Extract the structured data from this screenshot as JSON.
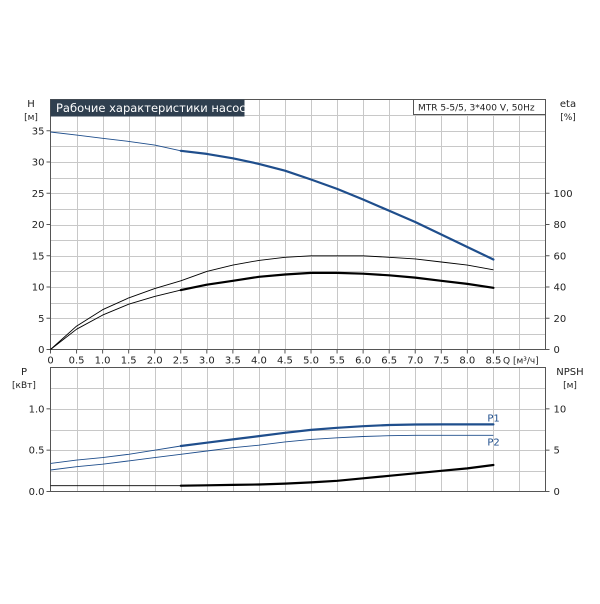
{
  "chart_data": [
    {
      "type": "line",
      "title": "Рабочие характеристики насоса",
      "model": "MTR 5-5/5, 3*400 V, 50Hz",
      "x_axis": {
        "label": "Q [м³/ч]",
        "range": [
          0,
          9.5
        ],
        "ticks": [
          "0",
          "0.5",
          "1.0",
          "1.5",
          "2.0",
          "2.5",
          "3.0",
          "3.5",
          "4.0",
          "4.5",
          "5.0",
          "5.5",
          "6.0",
          "6.5",
          "7.0",
          "7.5",
          "8.0",
          "8.5"
        ],
        "tick_values": [
          0,
          0.5,
          1.0,
          1.5,
          2.0,
          2.5,
          3.0,
          3.5,
          4.0,
          4.5,
          5.0,
          5.5,
          6.0,
          6.5,
          7.0,
          7.5,
          8.0,
          8.5
        ]
      },
      "y_left": {
        "label_top": "H",
        "unit": "[м]",
        "range": [
          0,
          40
        ],
        "ticks": [
          "0",
          "5",
          "10",
          "15",
          "20",
          "25",
          "30",
          "35"
        ],
        "tick_values": [
          0,
          5,
          10,
          15,
          20,
          25,
          30,
          35
        ]
      },
      "y_right": {
        "label_top": "eta",
        "unit": "[%]",
        "range": [
          0,
          160
        ],
        "ticks": [
          "0",
          "20",
          "40",
          "60",
          "80",
          "100"
        ],
        "tick_values": [
          0,
          20,
          40,
          60,
          80,
          100
        ]
      },
      "grid": true,
      "series": [
        {
          "color": "#1f4e8c",
          "axis": "left",
          "points": [
            [
              0,
              34.8
            ],
            [
              0.5,
              34.3
            ],
            [
              1.0,
              33.8
            ],
            [
              1.5,
              33.3
            ],
            [
              2.0,
              32.7
            ],
            [
              2.5,
              31.8
            ],
            [
              3.0,
              31.3
            ],
            [
              3.5,
              30.6
            ],
            [
              4.0,
              29.7
            ],
            [
              4.5,
              28.6
            ],
            [
              5.0,
              27.2
            ],
            [
              5.5,
              25.7
            ],
            [
              6.0,
              24.0
            ],
            [
              6.5,
              22.2
            ],
            [
              7.0,
              20.4
            ],
            [
              7.5,
              18.4
            ],
            [
              8.0,
              16.4
            ],
            [
              8.5,
              14.4
            ]
          ],
          "thick_from": 2.5
        },
        {
          "color": "#000000",
          "axis": "right",
          "points": [
            [
              0,
              0
            ],
            [
              0.5,
              15
            ],
            [
              1.0,
              25.5
            ],
            [
              1.5,
              33
            ],
            [
              2.0,
              39
            ],
            [
              2.5,
              44
            ],
            [
              3.0,
              50
            ],
            [
              3.5,
              54
            ],
            [
              4.0,
              57
            ],
            [
              4.5,
              59
            ],
            [
              5.0,
              60
            ],
            [
              5.5,
              60
            ],
            [
              6.0,
              60
            ],
            [
              6.5,
              59
            ],
            [
              7.0,
              58
            ],
            [
              7.5,
              56
            ],
            [
              8.0,
              54
            ],
            [
              8.5,
              51
            ]
          ],
          "thick_from": null
        },
        {
          "color": "#000000",
          "axis": "right",
          "points": [
            [
              0,
              0
            ],
            [
              0.5,
              13
            ],
            [
              1.0,
              22
            ],
            [
              1.5,
              29
            ],
            [
              2.0,
              34
            ],
            [
              2.5,
              38
            ],
            [
              3.0,
              41.5
            ],
            [
              3.5,
              44
            ],
            [
              4.0,
              46.5
            ],
            [
              4.5,
              48
            ],
            [
              5.0,
              49
            ],
            [
              5.5,
              49
            ],
            [
              6.0,
              48.5
            ],
            [
              6.5,
              47.5
            ],
            [
              7.0,
              46
            ],
            [
              7.5,
              44
            ],
            [
              8.0,
              42
            ],
            [
              8.5,
              39.5
            ]
          ],
          "thick_from": 2.5
        }
      ]
    },
    {
      "type": "line",
      "x_axis": {
        "range": [
          0,
          9.5
        ]
      },
      "y_left": {
        "label_top": "P",
        "unit": "[кВт]",
        "range": [
          0,
          1.5
        ],
        "ticks": [
          "0.0",
          "0.5",
          "1.0"
        ],
        "tick_values": [
          0,
          0.5,
          1.0
        ]
      },
      "y_right": {
        "label_top": "NPSH",
        "unit": "[м]",
        "range": [
          0,
          15
        ],
        "ticks": [
          "0",
          "5",
          "10"
        ],
        "tick_values": [
          0,
          5,
          10
        ]
      },
      "grid": true,
      "series": [
        {
          "name": "P1",
          "color": "#1f4e8c",
          "axis": "left",
          "points": [
            [
              0,
              0.34
            ],
            [
              0.5,
              0.38
            ],
            [
              1.0,
              0.41
            ],
            [
              1.5,
              0.45
            ],
            [
              2.0,
              0.5
            ],
            [
              2.5,
              0.55
            ],
            [
              3.0,
              0.59
            ],
            [
              3.5,
              0.63
            ],
            [
              4.0,
              0.67
            ],
            [
              4.5,
              0.71
            ],
            [
              5.0,
              0.745
            ],
            [
              5.5,
              0.77
            ],
            [
              6.0,
              0.79
            ],
            [
              6.5,
              0.805
            ],
            [
              7.0,
              0.81
            ],
            [
              7.5,
              0.812
            ],
            [
              8.0,
              0.812
            ],
            [
              8.5,
              0.812
            ]
          ],
          "thick_from": 2.5
        },
        {
          "name": "P2",
          "color": "#1f4e8c",
          "axis": "left",
          "points": [
            [
              0,
              0.26
            ],
            [
              0.5,
              0.3
            ],
            [
              1.0,
              0.33
            ],
            [
              1.5,
              0.37
            ],
            [
              2.0,
              0.41
            ],
            [
              2.5,
              0.45
            ],
            [
              3.0,
              0.49
            ],
            [
              3.5,
              0.53
            ],
            [
              4.0,
              0.56
            ],
            [
              4.5,
              0.6
            ],
            [
              5.0,
              0.63
            ],
            [
              5.5,
              0.65
            ],
            [
              6.0,
              0.665
            ],
            [
              6.5,
              0.675
            ],
            [
              7.0,
              0.68
            ],
            [
              7.5,
              0.68
            ],
            [
              8.0,
              0.68
            ],
            [
              8.5,
              0.68
            ]
          ],
          "thick_from": null
        },
        {
          "color": "#000000",
          "axis": "right",
          "points": [
            [
              0,
              0.7
            ],
            [
              1.0,
              0.7
            ],
            [
              2.0,
              0.7
            ],
            [
              2.5,
              0.7
            ],
            [
              3.0,
              0.75
            ],
            [
              3.5,
              0.8
            ],
            [
              4.0,
              0.85
            ],
            [
              4.5,
              0.95
            ],
            [
              5.0,
              1.1
            ],
            [
              5.5,
              1.3
            ],
            [
              6.0,
              1.6
            ],
            [
              6.5,
              1.9
            ],
            [
              7.0,
              2.2
            ],
            [
              7.5,
              2.5
            ],
            [
              8.0,
              2.8
            ],
            [
              8.5,
              3.2
            ]
          ],
          "thick_from": 2.5
        }
      ]
    }
  ]
}
